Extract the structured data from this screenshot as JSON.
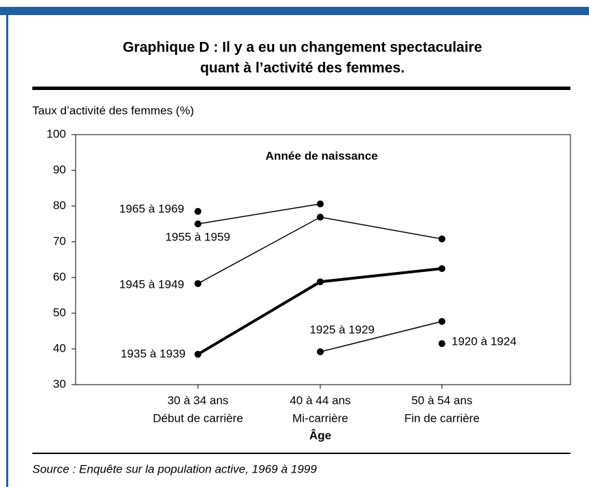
{
  "chart_data": {
    "type": "line",
    "title": "Graphique D : Il y a eu un changement spectaculaire",
    "title_line2": "quant à l’activité des femmes.",
    "y_label": "Taux d’activité des femmes (%)",
    "x_label": "Âge",
    "legend_title": "Année de naissance",
    "categories": [
      "30 à 34 ans",
      "40 à 44 ans",
      "50 à 54 ans"
    ],
    "category_sublabels": [
      "Début de carrière",
      "Mi-carrière",
      "Fin de carrière"
    ],
    "series": [
      {
        "name": "1965 à 1969",
        "color": "#000000",
        "width": 1.5,
        "values": [
          78.5,
          null,
          null
        ]
      },
      {
        "name": "1955 à 1959",
        "color": "#000000",
        "width": 1.5,
        "values": [
          75,
          80.6,
          null
        ]
      },
      {
        "name": "1945 à 1949",
        "color": "#000000",
        "width": 1.5,
        "values": [
          58.3,
          76.9,
          70.8
        ]
      },
      {
        "name": "1935 à 1939",
        "color": "#000000",
        "width": 4,
        "values": [
          38.5,
          58.8,
          62.5
        ]
      },
      {
        "name": "1925 à 1929",
        "color": "#000000",
        "width": 1.5,
        "values": [
          null,
          39.2,
          47.7
        ]
      },
      {
        "name": "1920 à 1924",
        "color": "#000000",
        "width": 1.5,
        "values": [
          null,
          null,
          41.5
        ]
      }
    ],
    "ylim": [
      30,
      100
    ],
    "yticks": [
      30,
      40,
      50,
      60,
      70,
      80,
      90,
      100
    ],
    "grid": false,
    "source": "Source : Enquête sur la population active, 1969 à 1999"
  }
}
